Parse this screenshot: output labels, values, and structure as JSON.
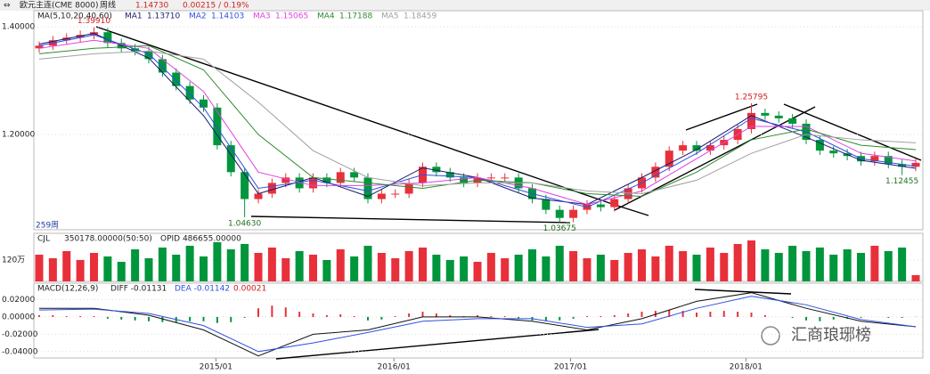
{
  "toolbar": {
    "symbol": "欧元主连(CME 8000)",
    "period": "周线",
    "price": "1.14730",
    "change": "0.00215 / 0.19%"
  },
  "watermark": "汇商琅琊榜",
  "chart_data": {
    "type": "candlestick",
    "xlim": [
      0,
      64
    ],
    "xticks": [
      {
        "value": 12.9,
        "label": "2015/01"
      },
      {
        "value": 25.9,
        "label": "2016/01"
      },
      {
        "value": 38.8,
        "label": "2017/01"
      },
      {
        "value": 51.6,
        "label": "2018/01"
      }
    ],
    "ylim": [
      1.023,
      1.43
    ],
    "yticks": [
      {
        "value": 1.4,
        "label": "1.40000"
      },
      {
        "value": 1.2,
        "label": "1.20000"
      }
    ],
    "up_color": "#e8303a",
    "down_color": "#00963c",
    "candles": {
      "open": [
        1.36,
        1.365,
        1.375,
        1.38,
        1.385,
        1.39,
        1.37,
        1.36,
        1.355,
        1.34,
        1.315,
        1.29,
        1.265,
        1.25,
        1.18,
        1.13,
        1.08,
        1.09,
        1.11,
        1.12,
        1.1,
        1.12,
        1.11,
        1.13,
        1.12,
        1.08,
        1.09,
        1.09,
        1.11,
        1.14,
        1.13,
        1.12,
        1.11,
        1.12,
        1.12,
        1.12,
        1.1,
        1.08,
        1.06,
        1.045,
        1.06,
        1.07,
        1.065,
        1.08,
        1.1,
        1.12,
        1.14,
        1.17,
        1.18,
        1.17,
        1.18,
        1.19,
        1.21,
        1.24,
        1.235,
        1.23,
        1.22,
        1.19,
        1.17,
        1.165,
        1.16,
        1.15,
        1.16,
        1.145,
        1.14
      ],
      "high": [
        1.373,
        1.383,
        1.388,
        1.393,
        1.3991,
        1.398,
        1.378,
        1.368,
        1.363,
        1.348,
        1.323,
        1.298,
        1.273,
        1.258,
        1.188,
        1.138,
        1.098,
        1.118,
        1.128,
        1.128,
        1.128,
        1.128,
        1.138,
        1.138,
        1.128,
        1.098,
        1.098,
        1.118,
        1.148,
        1.148,
        1.138,
        1.128,
        1.128,
        1.128,
        1.128,
        1.128,
        1.108,
        1.088,
        1.068,
        1.068,
        1.078,
        1.078,
        1.088,
        1.108,
        1.128,
        1.148,
        1.178,
        1.188,
        1.188,
        1.188,
        1.198,
        1.218,
        1.25795,
        1.248,
        1.243,
        1.238,
        1.228,
        1.198,
        1.178,
        1.173,
        1.168,
        1.168,
        1.168,
        1.153,
        1.155
      ],
      "low": [
        1.352,
        1.357,
        1.367,
        1.372,
        1.377,
        1.362,
        1.352,
        1.347,
        1.332,
        1.307,
        1.282,
        1.257,
        1.242,
        1.172,
        1.122,
        1.0463,
        1.072,
        1.082,
        1.102,
        1.092,
        1.092,
        1.102,
        1.102,
        1.112,
        1.072,
        1.072,
        1.082,
        1.082,
        1.102,
        1.122,
        1.112,
        1.102,
        1.102,
        1.112,
        1.112,
        1.092,
        1.072,
        1.052,
        1.03675,
        1.037,
        1.052,
        1.057,
        1.057,
        1.072,
        1.092,
        1.112,
        1.132,
        1.162,
        1.162,
        1.162,
        1.172,
        1.182,
        1.202,
        1.227,
        1.222,
        1.212,
        1.182,
        1.162,
        1.157,
        1.152,
        1.142,
        1.142,
        1.137,
        1.12455,
        1.132
      ],
      "close": [
        1.365,
        1.375,
        1.38,
        1.385,
        1.39,
        1.37,
        1.36,
        1.355,
        1.34,
        1.315,
        1.29,
        1.265,
        1.25,
        1.18,
        1.13,
        1.08,
        1.09,
        1.11,
        1.12,
        1.1,
        1.12,
        1.11,
        1.13,
        1.12,
        1.08,
        1.09,
        1.09,
        1.11,
        1.14,
        1.13,
        1.12,
        1.11,
        1.12,
        1.12,
        1.12,
        1.1,
        1.08,
        1.06,
        1.045,
        1.06,
        1.07,
        1.065,
        1.08,
        1.1,
        1.12,
        1.14,
        1.17,
        1.18,
        1.17,
        1.18,
        1.19,
        1.21,
        1.24,
        1.235,
        1.23,
        1.22,
        1.19,
        1.17,
        1.165,
        1.16,
        1.15,
        1.16,
        1.145,
        1.14,
        1.1473
      ]
    },
    "ma_title": "MA(5,10,20,40,60)",
    "ma_x": [
      0,
      4,
      8,
      12,
      16,
      20,
      24,
      28,
      32,
      36,
      40,
      44,
      48,
      52,
      56,
      60,
      64
    ],
    "ma": [
      {
        "name": "MA1",
        "label": "1.13710",
        "color": "#1a1a6e",
        "values": [
          1.368,
          1.388,
          1.342,
          1.235,
          1.09,
          1.12,
          1.085,
          1.138,
          1.12,
          1.082,
          1.07,
          1.12,
          1.172,
          1.235,
          1.195,
          1.152,
          1.1371
        ]
      },
      {
        "name": "MA2",
        "label": "1.14103",
        "color": "#3050e0",
        "values": [
          1.365,
          1.385,
          1.35,
          1.25,
          1.1,
          1.115,
          1.095,
          1.125,
          1.12,
          1.09,
          1.065,
          1.11,
          1.165,
          1.23,
          1.205,
          1.155,
          1.141
        ]
      },
      {
        "name": "MA3",
        "label": "1.15065",
        "color": "#e040e0",
        "values": [
          1.36,
          1.375,
          1.36,
          1.28,
          1.13,
          1.105,
          1.105,
          1.11,
          1.12,
          1.1,
          1.07,
          1.095,
          1.155,
          1.215,
          1.215,
          1.165,
          1.1507
        ]
      },
      {
        "name": "MA4",
        "label": "1.17188",
        "color": "#2e8b2e",
        "values": [
          1.35,
          1.36,
          1.365,
          1.32,
          1.2,
          1.12,
          1.11,
          1.1,
          1.115,
          1.11,
          1.09,
          1.085,
          1.13,
          1.19,
          1.21,
          1.18,
          1.1719
        ]
      },
      {
        "name": "MA5",
        "label": "1.18459",
        "color": "#a0a0a0",
        "values": [
          1.34,
          1.35,
          1.355,
          1.34,
          1.26,
          1.17,
          1.12,
          1.105,
          1.11,
          1.11,
          1.095,
          1.09,
          1.115,
          1.165,
          1.2,
          1.19,
          1.1846
        ]
      }
    ],
    "period_label": "259周",
    "annotations": [
      {
        "text": "1.39910",
        "index": 4,
        "value": 1.3991,
        "color": "#d02020"
      },
      {
        "text": "1.04630",
        "index": 15,
        "value": 1.0463,
        "color": "#207020"
      },
      {
        "text": "1.03675",
        "index": 38,
        "value": 1.03675,
        "color": "#207020"
      },
      {
        "text": "1.25795",
        "index": 52,
        "value": 1.25795,
        "color": "#d02020"
      },
      {
        "text": "1.12455",
        "index": 63,
        "value": 1.12455,
        "color": "#207020"
      }
    ],
    "volume": {
      "title": "CJL",
      "label": "350178.00000(50:50)",
      "opid": "OPID 486655.00000",
      "ylim": [
        0,
        2700000
      ],
      "yticks": [
        {
          "value": 1200000,
          "label": "120万"
        }
      ],
      "values": [
        1500000,
        1300000,
        1700000,
        1200000,
        1600000,
        1400000,
        1100000,
        1800000,
        1300000,
        1900000,
        1500000,
        2000000,
        1400000,
        2200000,
        1800000,
        2100000,
        1600000,
        1900000,
        1300000,
        1700000,
        1500000,
        1200000,
        1800000,
        1400000,
        2000000,
        1600000,
        1300000,
        1700000,
        1900000,
        1500000,
        1200000,
        1400000,
        1100000,
        1600000,
        1300000,
        1500000,
        1800000,
        1400000,
        2000000,
        1700000,
        1300000,
        1500000,
        1200000,
        1600000,
        1800000,
        1400000,
        2000000,
        1700000,
        1500000,
        1900000,
        1600000,
        2100000,
        2300000,
        1800000,
        1600000,
        2000000,
        1700000,
        1900000,
        1500000,
        1800000,
        1600000,
        2000000,
        1700000,
        1900000,
        350178
      ]
    },
    "macd": {
      "title": "MACD(12,26,9)",
      "diff_label": "DIFF -0.01131",
      "dea_label": "DEA -0.01142",
      "macd_label": "0.00021",
      "ylim": [
        -0.0474,
        0.039
      ],
      "yticks": [
        {
          "value": 0.02,
          "label": "0.02000"
        },
        {
          "value": 0,
          "label": "0.00000"
        },
        {
          "value": -0.02,
          "label": "-0.02000"
        },
        {
          "value": -0.04,
          "label": "-0.04000"
        }
      ],
      "hist": [
        0.002,
        0.002,
        0.001,
        0.001,
        0.001,
        -0.002,
        -0.003,
        -0.004,
        -0.005,
        -0.006,
        -0.006,
        -0.005,
        -0.005,
        -0.007,
        -0.006,
        -0.001,
        0.01,
        0.013,
        0.011,
        0.006,
        0.004,
        0.002,
        0.003,
        0.001,
        -0.004,
        -0.003,
        0.001,
        0.004,
        0.006,
        0.004,
        0.002,
        0.001,
        0.002,
        0.001,
        0.001,
        -0.002,
        -0.004,
        -0.005,
        -0.004,
        -0.002,
        0.001,
        0.001,
        0.002,
        0.004,
        0.006,
        0.007,
        0.008,
        0.007,
        0.005,
        0.006,
        0.007,
        0.006,
        0.005,
        0.002,
        0.0,
        -0.001,
        -0.004,
        -0.005,
        -0.003,
        -0.002,
        -0.001,
        0.0,
        -0.001,
        -0.001,
        0.00021
      ],
      "diff_color": "#111111",
      "dea_color": "#3050e0",
      "diff": [
        0.01,
        0.01,
        0.002,
        -0.015,
        -0.045,
        -0.02,
        -0.015,
        0.0,
        0.0,
        -0.005,
        -0.015,
        -0.002,
        0.018,
        0.028,
        0.01,
        -0.005,
        -0.01131
      ],
      "dea": [
        0.008,
        0.009,
        0.004,
        -0.01,
        -0.04,
        -0.03,
        -0.018,
        -0.005,
        -0.002,
        -0.002,
        -0.012,
        -0.008,
        0.01,
        0.024,
        0.014,
        -0.003,
        -0.01142
      ]
    }
  }
}
